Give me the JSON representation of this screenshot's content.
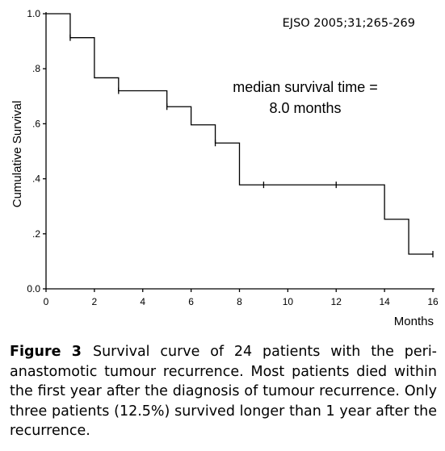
{
  "chart_data": {
    "type": "line",
    "subtype": "kaplan-meier-step",
    "xlabel": "Months",
    "ylabel": "Cumulative Survival",
    "xlim": [
      0,
      16
    ],
    "ylim": [
      0,
      1
    ],
    "x_ticks": [
      0,
      2,
      4,
      6,
      8,
      10,
      12,
      14,
      16
    ],
    "x_tick_labels": [
      "0",
      "2",
      "4",
      "6",
      "8",
      "10",
      "12",
      "14",
      "16"
    ],
    "y_ticks": [
      0,
      0.2,
      0.4,
      0.6,
      0.8,
      1.0
    ],
    "y_tick_labels": [
      "0.0",
      ".2",
      ".4",
      ".6",
      ".8",
      "1.0"
    ],
    "grid": false,
    "legend": null,
    "steps": [
      {
        "x": 0,
        "y": 1.0
      },
      {
        "x": 1,
        "y": 0.913
      },
      {
        "x": 2,
        "y": 0.767
      },
      {
        "x": 3,
        "y": 0.72
      },
      {
        "x": 5,
        "y": 0.662
      },
      {
        "x": 6,
        "y": 0.596
      },
      {
        "x": 7,
        "y": 0.53
      },
      {
        "x": 8,
        "y": 0.378
      },
      {
        "x": 14,
        "y": 0.253
      },
      {
        "x": 15,
        "y": 0.126
      },
      {
        "x": 16,
        "y": 0.126
      }
    ],
    "censored": [
      {
        "x": 1,
        "y": 0.913
      },
      {
        "x": 3,
        "y": 0.72
      },
      {
        "x": 5,
        "y": 0.662
      },
      {
        "x": 7,
        "y": 0.53
      },
      {
        "x": 9,
        "y": 0.378
      },
      {
        "x": 12,
        "y": 0.378
      },
      {
        "x": 16,
        "y": 0.126
      }
    ],
    "annotations": [
      "EJSO 2005;31;265-269",
      "median survival time =",
      "8.0 months"
    ]
  },
  "caption": {
    "label": "Figure 3",
    "text": "Survival curve of 24 patients with the peri-anastomotic tumour recurrence. Most patients died within the first year after the diagnosis of tumour recurrence. Only three patients (12.5%) survived longer than 1 year after the recurrence."
  }
}
